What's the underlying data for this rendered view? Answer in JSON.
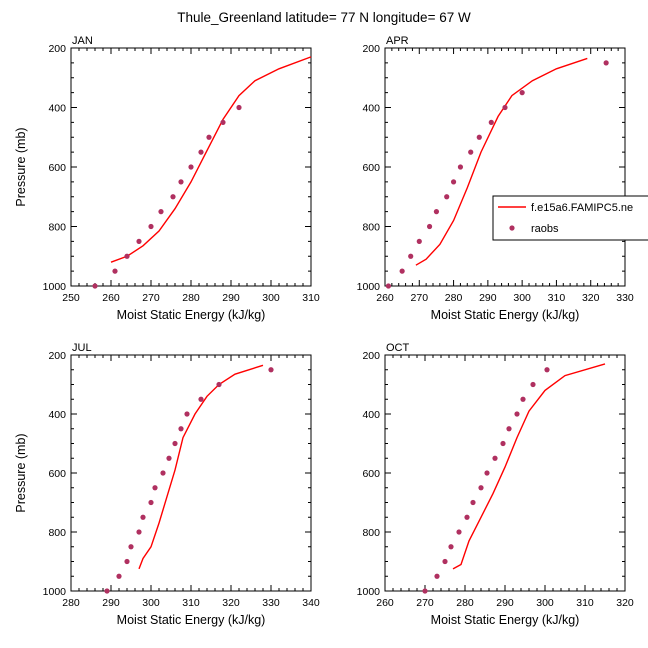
{
  "figure": {
    "title": "Thule_Greenland  latitude= 77 N longitude= 67 W",
    "colors": {
      "model": "#ff0000",
      "obs": "#b03060",
      "axis": "#000000"
    },
    "legend": {
      "model_label": "f.e15a6.FAMIPC5.ne",
      "obs_label": "raobs",
      "placement": "right of APR panel"
    }
  },
  "chart_data": [
    {
      "type": "line",
      "panel": "JAN",
      "xlabel": "Moist Static Energy (kJ/kg)",
      "ylabel": "Pressure (mb)",
      "xlim": [
        250,
        310
      ],
      "ylim": [
        1000,
        200
      ],
      "y_inverted": true,
      "xticks": [
        250,
        260,
        270,
        280,
        290,
        300,
        310
      ],
      "yticks": [
        200,
        400,
        600,
        800,
        1000
      ],
      "series": [
        {
          "name": "f.e15a6.FAMIPC5.ne",
          "kind": "line",
          "x": [
            260,
            264,
            268,
            272,
            276,
            280,
            284,
            288,
            292,
            296,
            302,
            310
          ],
          "y": [
            920,
            900,
            865,
            815,
            740,
            650,
            545,
            440,
            360,
            310,
            270,
            230
          ]
        },
        {
          "name": "raobs",
          "kind": "scatter",
          "x": [
            256,
            261,
            264,
            267,
            270,
            272.5,
            275.5,
            277.5,
            280,
            282.5,
            284.5,
            288,
            292
          ],
          "y": [
            1000,
            950,
            900,
            850,
            800,
            750,
            700,
            650,
            600,
            550,
            500,
            450,
            400
          ]
        }
      ]
    },
    {
      "type": "line",
      "panel": "APR",
      "xlabel": "Moist Static Energy (kJ/kg)",
      "ylabel": "",
      "xlim": [
        260,
        330
      ],
      "ylim": [
        1000,
        200
      ],
      "y_inverted": true,
      "xticks": [
        260,
        270,
        280,
        290,
        300,
        310,
        320,
        330
      ],
      "yticks": [
        200,
        400,
        600,
        800,
        1000
      ],
      "series": [
        {
          "name": "f.e15a6.FAMIPC5.ne",
          "kind": "line",
          "x": [
            269,
            272,
            276,
            280,
            284,
            288,
            293,
            297,
            303,
            310,
            319
          ],
          "y": [
            930,
            910,
            860,
            780,
            670,
            550,
            430,
            360,
            310,
            270,
            235
          ]
        },
        {
          "name": "raobs",
          "kind": "scatter",
          "x": [
            261,
            265,
            267.5,
            270,
            273,
            275,
            278,
            280,
            282,
            285,
            287.5,
            291,
            295,
            300,
            324.5
          ],
          "y": [
            1000,
            950,
            900,
            850,
            800,
            750,
            700,
            650,
            600,
            550,
            500,
            450,
            400,
            350,
            250
          ]
        }
      ]
    },
    {
      "type": "line",
      "panel": "JUL",
      "xlabel": "Moist Static Energy (kJ/kg)",
      "ylabel": "Pressure (mb)",
      "xlim": [
        280,
        340
      ],
      "ylim": [
        1000,
        200
      ],
      "y_inverted": true,
      "xticks": [
        280,
        290,
        300,
        310,
        320,
        330,
        340
      ],
      "yticks": [
        200,
        400,
        600,
        800,
        1000
      ],
      "series": [
        {
          "name": "f.e15a6.FAMIPC5.ne",
          "kind": "line",
          "x": [
            297,
            298,
            300,
            302,
            304,
            306,
            308,
            311,
            314,
            317,
            321,
            328
          ],
          "y": [
            925,
            890,
            850,
            770,
            680,
            590,
            480,
            400,
            340,
            300,
            265,
            235
          ]
        },
        {
          "name": "raobs",
          "kind": "scatter",
          "x": [
            289,
            292,
            294,
            295,
            297,
            298,
            300,
            301,
            303,
            304.5,
            306,
            307.5,
            309,
            312.5,
            317,
            330
          ],
          "y": [
            1000,
            950,
            900,
            850,
            800,
            750,
            700,
            650,
            600,
            550,
            500,
            450,
            400,
            350,
            300,
            250
          ]
        }
      ]
    },
    {
      "type": "line",
      "panel": "OCT",
      "xlabel": "Moist Static Energy (kJ/kg)",
      "ylabel": "",
      "xlim": [
        260,
        320
      ],
      "ylim": [
        1000,
        200
      ],
      "y_inverted": true,
      "xticks": [
        260,
        270,
        280,
        290,
        300,
        310,
        320
      ],
      "yticks": [
        200,
        400,
        600,
        800,
        1000
      ],
      "series": [
        {
          "name": "f.e15a6.FAMIPC5.ne",
          "kind": "line",
          "x": [
            277,
            279,
            281,
            284,
            287,
            290,
            293,
            296,
            300,
            305,
            315
          ],
          "y": [
            925,
            910,
            830,
            750,
            670,
            580,
            480,
            390,
            320,
            270,
            230
          ]
        },
        {
          "name": "raobs",
          "kind": "scatter",
          "x": [
            270,
            273,
            275,
            276.5,
            278.5,
            280.5,
            282,
            284,
            285.5,
            287.5,
            289.5,
            291,
            293,
            294.5,
            297,
            300.5
          ],
          "y": [
            1000,
            950,
            900,
            850,
            800,
            750,
            700,
            650,
            600,
            550,
            500,
            450,
            400,
            350,
            300,
            250
          ]
        }
      ]
    }
  ]
}
